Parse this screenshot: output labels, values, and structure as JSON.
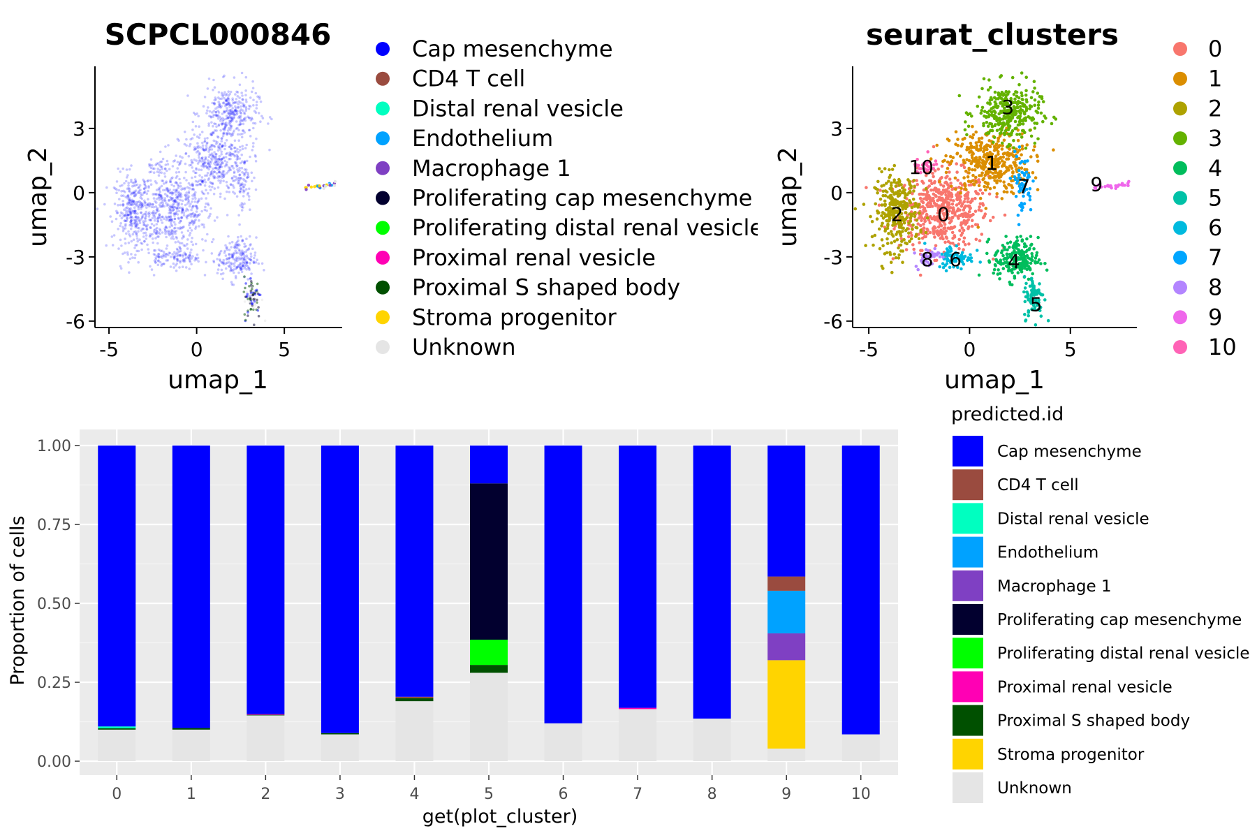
{
  "chart_data": [
    {
      "type": "scatter",
      "title": "SCPCL000846",
      "xlabel": "umap_1",
      "ylabel": "umap_2",
      "xlim": [
        -5.8,
        8.3
      ],
      "ylim": [
        -6.3,
        5.9
      ],
      "x_ticks": [
        "-5",
        "0",
        "5"
      ],
      "y_ticks": [
        "3",
        "0",
        "-3",
        "-6"
      ],
      "legend_position": "right",
      "legend": [
        {
          "label": "Cap mesenchyme",
          "color": "#0000FF"
        },
        {
          "label": "CD4 T cell",
          "color": "#9A4B3F"
        },
        {
          "label": "Distal renal vesicle",
          "color": "#00FFC0"
        },
        {
          "label": "Endothelium",
          "color": "#00A2FF"
        },
        {
          "label": "Macrophage 1",
          "color": "#7F40C3"
        },
        {
          "label": "Proliferating cap mesenchyme",
          "color": "#02002F"
        },
        {
          "label": "Proliferating distal renal vesicle",
          "color": "#00FF00"
        },
        {
          "label": "Proximal renal vesicle",
          "color": "#FF00B4"
        },
        {
          "label": "Proximal S shaped body",
          "color": "#005000"
        },
        {
          "label": "Stroma progenitor",
          "color": "#FFD400"
        },
        {
          "label": "Unknown",
          "color": "#E5E5E5"
        }
      ]
    },
    {
      "type": "scatter",
      "title": "seurat_clusters",
      "xlabel": "umap_1",
      "ylabel": "umap_2",
      "xlim": [
        -5.8,
        8.3
      ],
      "ylim": [
        -6.3,
        5.9
      ],
      "x_ticks": [
        "-5",
        "0",
        "5"
      ],
      "y_ticks": [
        "3",
        "0",
        "-3",
        "-6"
      ],
      "legend_position": "right",
      "legend": [
        {
          "label": "0",
          "color": "#F8766D"
        },
        {
          "label": "1",
          "color": "#DB8E00"
        },
        {
          "label": "2",
          "color": "#AEA200"
        },
        {
          "label": "3",
          "color": "#64B200"
        },
        {
          "label": "4",
          "color": "#00BD5C"
        },
        {
          "label": "5",
          "color": "#00C1A7"
        },
        {
          "label": "6",
          "color": "#00BADE"
        },
        {
          "label": "7",
          "color": "#00A6FF"
        },
        {
          "label": "8",
          "color": "#B385FF"
        },
        {
          "label": "9",
          "color": "#EF67EB"
        },
        {
          "label": "10",
          "color": "#FF63B6"
        }
      ],
      "cluster_labels": [
        {
          "label": "0",
          "x": -1.3,
          "y": -1.0
        },
        {
          "label": "1",
          "x": 1.1,
          "y": 1.4
        },
        {
          "label": "2",
          "x": -3.6,
          "y": -1.0
        },
        {
          "label": "3",
          "x": 1.9,
          "y": 4.0
        },
        {
          "label": "4",
          "x": 2.2,
          "y": -3.2
        },
        {
          "label": "5",
          "x": 3.3,
          "y": -5.2
        },
        {
          "label": "6",
          "x": -0.7,
          "y": -3.1
        },
        {
          "label": "7",
          "x": 2.7,
          "y": 0.3
        },
        {
          "label": "8",
          "x": -2.1,
          "y": -3.1
        },
        {
          "label": "9",
          "x": 6.3,
          "y": 0.4
        },
        {
          "label": "10",
          "x": -2.4,
          "y": 1.2
        }
      ]
    },
    {
      "type": "bar",
      "stacked": true,
      "xlabel": "get(plot_cluster)",
      "ylabel": "Proportion of cells",
      "ylim": [
        0,
        1
      ],
      "y_ticks": [
        "0.00",
        "0.25",
        "0.50",
        "0.75",
        "1.00"
      ],
      "categories": [
        "0",
        "1",
        "2",
        "3",
        "4",
        "5",
        "6",
        "7",
        "8",
        "9",
        "10"
      ],
      "legend_title": "predicted.id",
      "legend_position": "right",
      "series": [
        {
          "name": "Unknown",
          "color": "#E5E5E5",
          "values": [
            0.1,
            0.1,
            0.145,
            0.085,
            0.19,
            0.28,
            0.12,
            0.165,
            0.135,
            0.04,
            0.085
          ]
        },
        {
          "name": "Stroma progenitor",
          "color": "#FFD400",
          "values": [
            0,
            0,
            0,
            0,
            0,
            0,
            0,
            0,
            0,
            0.28,
            0
          ]
        },
        {
          "name": "Proximal S shaped body",
          "color": "#005000",
          "values": [
            0.004,
            0.005,
            0.002,
            0.004,
            0.01,
            0.025,
            0,
            0,
            0,
            0,
            0
          ]
        },
        {
          "name": "Proximal renal vesicle",
          "color": "#FF00B4",
          "values": [
            0,
            0,
            0.002,
            0,
            0,
            0,
            0,
            0.004,
            0,
            0,
            0
          ]
        },
        {
          "name": "Proliferating distal renal vesicle",
          "color": "#00FF00",
          "values": [
            0,
            0,
            0,
            0,
            0,
            0.08,
            0,
            0,
            0,
            0,
            0
          ]
        },
        {
          "name": "Proliferating cap mesenchyme",
          "color": "#02002F",
          "values": [
            0,
            0,
            0,
            0,
            0,
            0.495,
            0,
            0,
            0,
            0,
            0
          ]
        },
        {
          "name": "Macrophage 1",
          "color": "#7F40C3",
          "values": [
            0,
            0,
            0,
            0,
            0,
            0,
            0,
            0,
            0,
            0.085,
            0
          ]
        },
        {
          "name": "Endothelium",
          "color": "#00A2FF",
          "values": [
            0,
            0,
            0,
            0,
            0,
            0,
            0,
            0,
            0,
            0.135,
            0
          ]
        },
        {
          "name": "Distal renal vesicle",
          "color": "#00FFC0",
          "values": [
            0.006,
            0,
            0,
            0,
            0,
            0,
            0,
            0,
            0,
            0,
            0
          ]
        },
        {
          "name": "CD4 T cell",
          "color": "#9A4B3F",
          "values": [
            0,
            0,
            0,
            0,
            0.004,
            0,
            0,
            0,
            0,
            0.045,
            0
          ]
        },
        {
          "name": "Cap mesenchyme",
          "color": "#0000FF",
          "values": [
            0.89,
            0.895,
            0.851,
            0.911,
            0.796,
            0.12,
            0.88,
            0.831,
            0.865,
            0.415,
            0.915
          ]
        }
      ],
      "legend": [
        {
          "label": "Cap mesenchyme",
          "color": "#0000FF"
        },
        {
          "label": "CD4 T cell",
          "color": "#9A4B3F"
        },
        {
          "label": "Distal renal vesicle",
          "color": "#00FFC0"
        },
        {
          "label": "Endothelium",
          "color": "#00A2FF"
        },
        {
          "label": "Macrophage 1",
          "color": "#7F40C3"
        },
        {
          "label": "Proliferating cap mesenchyme",
          "color": "#02002F"
        },
        {
          "label": "Proliferating distal renal vesicle",
          "color": "#00FF00"
        },
        {
          "label": "Proximal renal vesicle",
          "color": "#FF00B4"
        },
        {
          "label": "Proximal S shaped body",
          "color": "#005000"
        },
        {
          "label": "Stroma progenitor",
          "color": "#FFD400"
        },
        {
          "label": "Unknown",
          "color": "#E5E5E5"
        }
      ]
    }
  ]
}
